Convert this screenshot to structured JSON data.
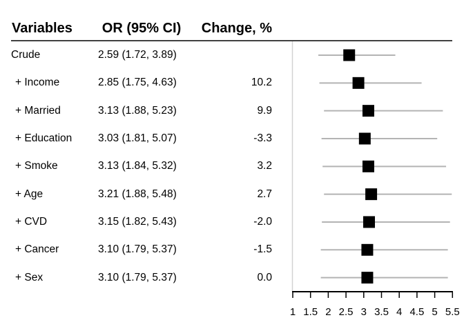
{
  "chart_data": {
    "type": "forest",
    "title": "",
    "columns": [
      "Variables",
      "OR (95% CI)",
      "Change, %"
    ],
    "rows": [
      {
        "variable": "Crude",
        "or_ci": "2.59 (1.72, 3.89)",
        "change": "",
        "or": 2.59,
        "lo": 1.72,
        "hi": 3.89
      },
      {
        "variable": "+ Income",
        "or_ci": "2.85 (1.75, 4.63)",
        "change": "10.2",
        "or": 2.85,
        "lo": 1.75,
        "hi": 4.63
      },
      {
        "variable": "+ Married",
        "or_ci": "3.13 (1.88, 5.23)",
        "change": "9.9",
        "or": 3.13,
        "lo": 1.88,
        "hi": 5.23
      },
      {
        "variable": "+ Education",
        "or_ci": "3.03 (1.81, 5.07)",
        "change": "-3.3",
        "or": 3.03,
        "lo": 1.81,
        "hi": 5.07
      },
      {
        "variable": "+ Smoke",
        "or_ci": "3.13 (1.84, 5.32)",
        "change": "3.2",
        "or": 3.13,
        "lo": 1.84,
        "hi": 5.32
      },
      {
        "variable": "+ Age",
        "or_ci": "3.21 (1.88, 5.48)",
        "change": "2.7",
        "or": 3.21,
        "lo": 1.88,
        "hi": 5.48
      },
      {
        "variable": "+ CVD",
        "or_ci": "3.15 (1.82, 5.43)",
        "change": "-2.0",
        "or": 3.15,
        "lo": 1.82,
        "hi": 5.43
      },
      {
        "variable": "+ Cancer",
        "or_ci": "3.10 (1.79, 5.37)",
        "change": "-1.5",
        "or": 3.1,
        "lo": 1.79,
        "hi": 5.37
      },
      {
        "variable": "+ Sex",
        "or_ci": "3.10 (1.79, 5.37)",
        "change": "0.0",
        "or": 3.1,
        "lo": 1.79,
        "hi": 5.37
      }
    ],
    "x_axis": {
      "min": 1,
      "max": 5.5,
      "ticks": [
        1,
        1.5,
        2,
        2.5,
        3,
        3.5,
        4,
        4.5,
        5,
        5.5
      ],
      "tick_labels": [
        "1",
        "1.5",
        "2",
        "2.5",
        "3",
        "3.5",
        "4",
        "4.5",
        "5",
        "5.5"
      ]
    },
    "grid": false,
    "legend": false,
    "xlabel": "",
    "ylabel": ""
  },
  "colors": {
    "text": "#000000",
    "header_rule": "#404040",
    "plot_border": "#d2d2d2",
    "ci_line": "#b3b3b3",
    "marker": "#000000",
    "axis": "#000000"
  }
}
